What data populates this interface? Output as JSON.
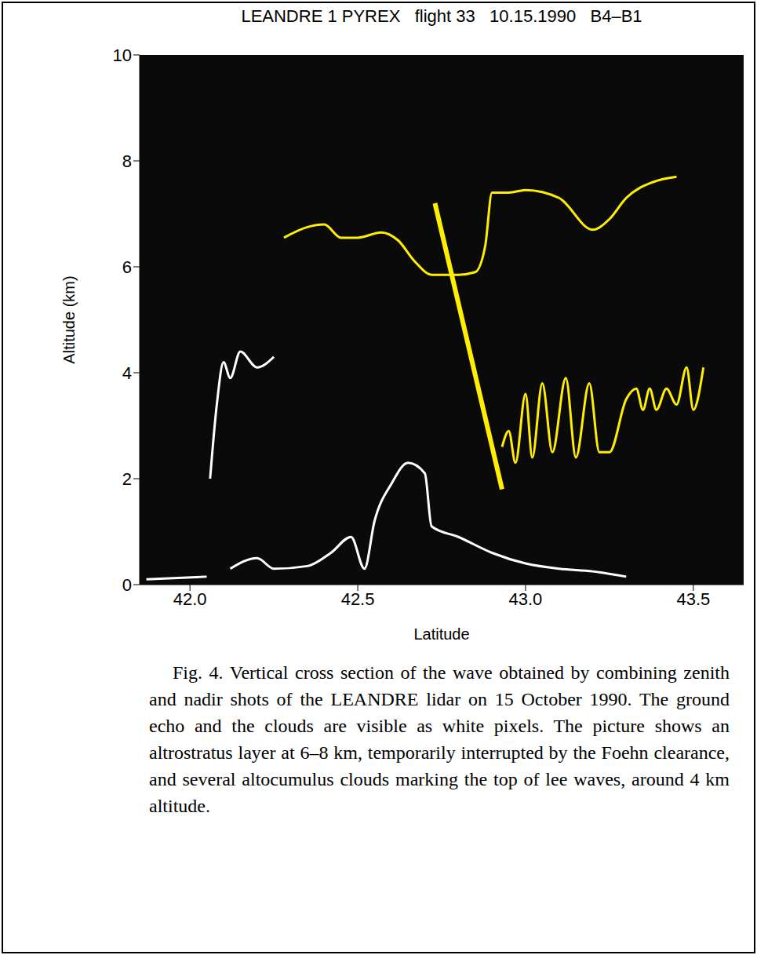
{
  "chart_data": {
    "type": "line",
    "title": "LEANDRE 1 PYREX   flight 33   10.15.1990   B4–B1",
    "x_label": "Latitude",
    "y_label": "Altitude (km)",
    "xlim": [
      41.85,
      43.65
    ],
    "xticks": [
      {
        "value": 42,
        "label": "42.0"
      },
      {
        "value": 42.5,
        "label": "42.5"
      },
      {
        "value": 43,
        "label": "43.0"
      },
      {
        "value": 43.5,
        "label": "43.5"
      }
    ],
    "ylim": [
      0,
      10
    ],
    "yticks": [
      0,
      2,
      4,
      6,
      8,
      10
    ],
    "grid": false,
    "caption": "Fig. 4. Vertical cross section of the wave obtained by combining zenith and nadir shots of the LEANDRE lidar on 15 October 1990. The ground echo and the clouds are visible as white pixels. The picture shows an altrostratus layer at 6–8 km, temporarily interrupted by the Foehn clearance, and several altocumulus clouds marking the top of lee waves, around 4 km altitude.",
    "series": [
      {
        "color": "#ffffff",
        "line_style": "solid",
        "x": [
          41.87,
          42.05,
          42.07,
          42.12,
          42.2,
          42.25,
          42.35,
          42.42,
          42.48,
          42.52,
          42.55,
          42.6,
          42.65,
          42.7,
          42.72,
          42.8,
          42.9,
          43.0,
          43.1,
          43.2,
          43.3
        ],
        "values": [
          0.1,
          0.15,
          null,
          0.3,
          0.5,
          0.3,
          0.35,
          0.6,
          0.9,
          0.3,
          1.2,
          1.9,
          2.3,
          2.1,
          1.1,
          0.9,
          0.6,
          0.4,
          0.3,
          0.25,
          0.15
        ]
      },
      {
        "color": "#ffffff",
        "line_style": "solid",
        "x": [
          42.06,
          42.08,
          42.1,
          42.12,
          42.15,
          42.2,
          42.25
        ],
        "values": [
          2.0,
          3.4,
          4.2,
          3.9,
          4.4,
          4.1,
          4.3
        ]
      },
      {
        "color": "#ffee00",
        "line_style": "solid",
        "x": [
          42.28,
          42.35,
          42.4,
          42.45,
          42.5,
          42.57,
          42.62,
          42.67,
          42.72,
          42.8,
          42.85,
          42.88,
          42.9,
          42.95,
          43.0,
          43.1,
          43.2,
          43.25,
          43.3,
          43.38,
          43.45
        ],
        "values": [
          6.55,
          6.75,
          6.8,
          6.55,
          6.55,
          6.65,
          6.5,
          6.1,
          5.85,
          5.85,
          5.9,
          6.4,
          7.4,
          7.4,
          7.45,
          7.3,
          6.7,
          6.9,
          7.3,
          7.6,
          7.7
        ]
      },
      {
        "color": "#ffee00",
        "line_style": "solid",
        "x": [
          42.93,
          42.95,
          42.97,
          43.0,
          43.02,
          43.05,
          43.08,
          43.12,
          43.15,
          43.19,
          43.22,
          43.25,
          43.3,
          43.33,
          43.35,
          43.37,
          43.39,
          43.42,
          43.45,
          43.48,
          43.5,
          43.53
        ],
        "values": [
          2.6,
          2.9,
          2.3,
          3.6,
          2.4,
          3.8,
          2.5,
          3.9,
          2.4,
          3.8,
          2.5,
          2.5,
          3.5,
          3.7,
          3.3,
          3.7,
          3.3,
          3.7,
          3.4,
          4.1,
          3.3,
          4.1
        ]
      },
      {
        "color": "#ffee00",
        "line_style": "thick",
        "x": [
          42.73,
          42.93
        ],
        "values": [
          7.2,
          1.8
        ]
      }
    ]
  }
}
